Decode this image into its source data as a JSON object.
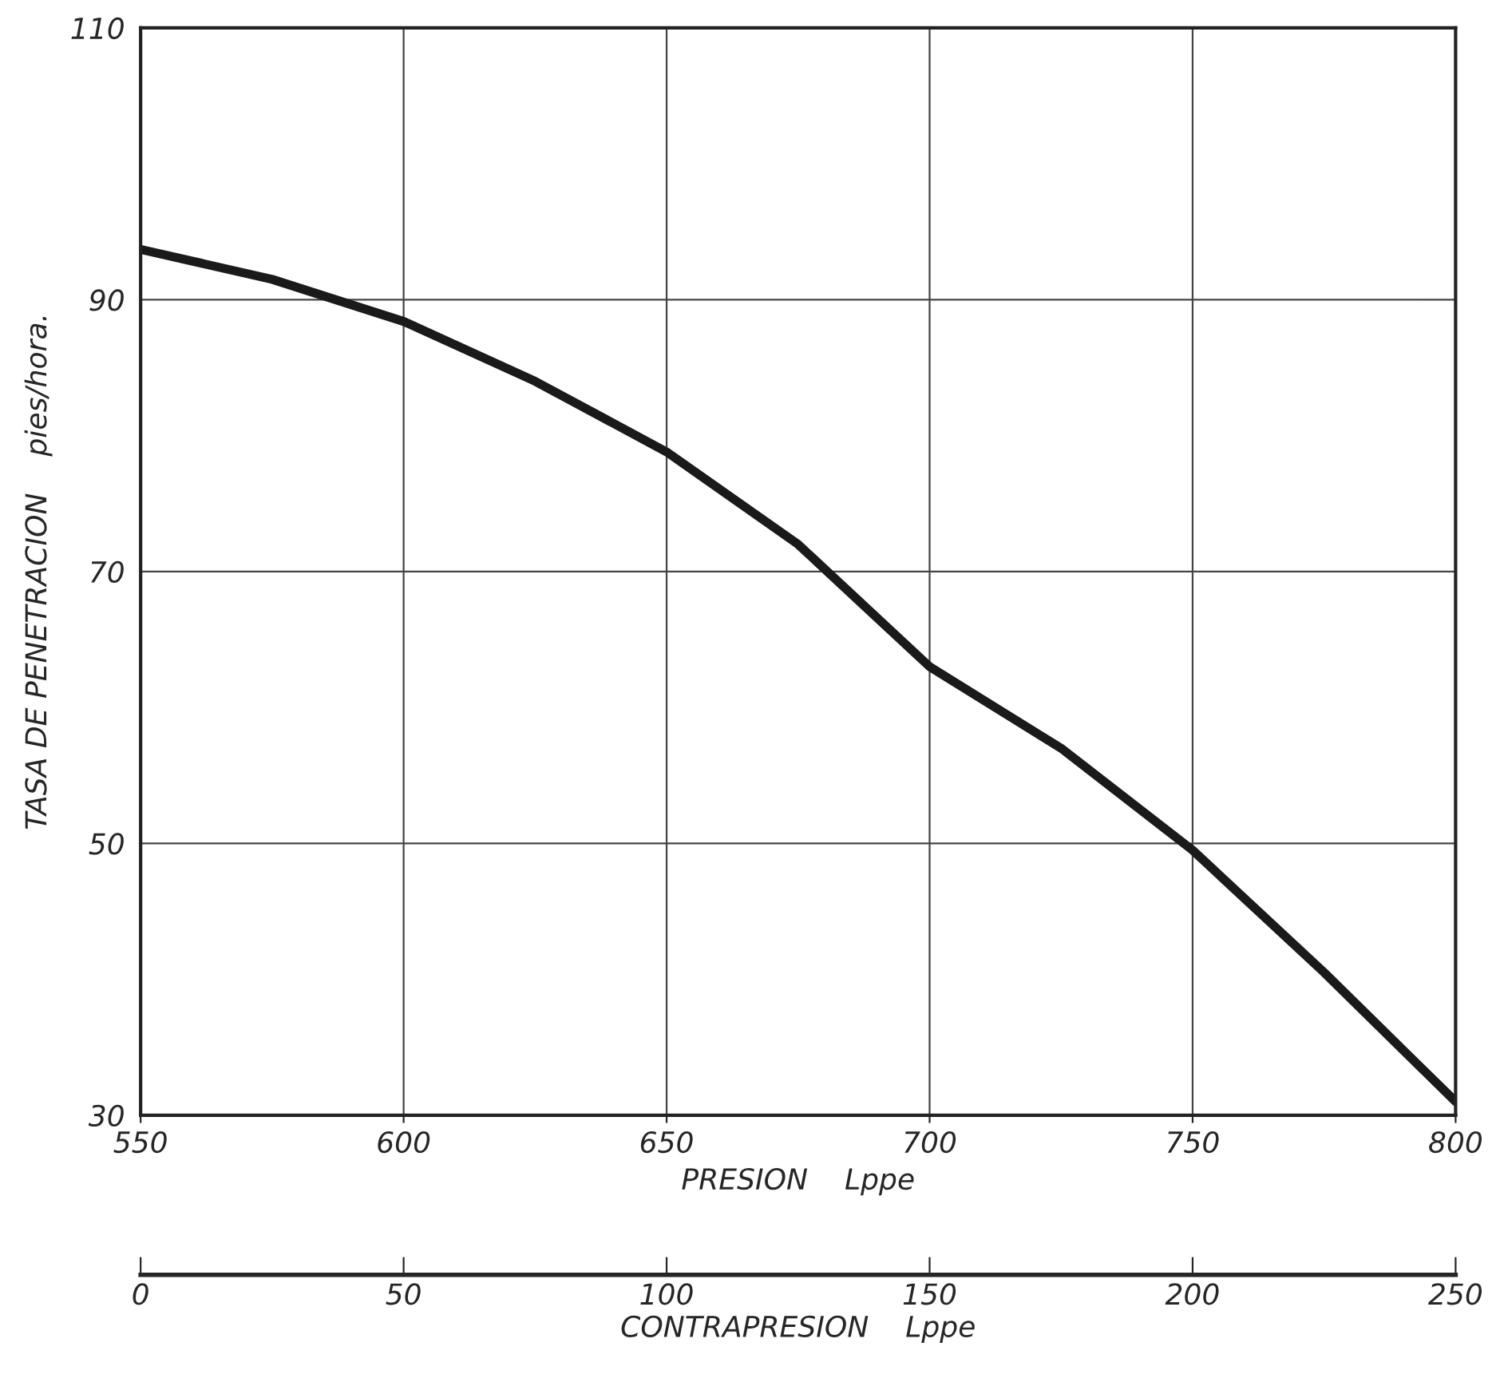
{
  "chart_data": {
    "type": "line",
    "xlabel": "PRESION    Lppe",
    "ylabel": "TASA DE PENETRACION    pies/hora.",
    "x2label": "CONTRAPRESION    Lppe",
    "x": [
      550,
      575,
      600,
      625,
      650,
      675,
      700,
      725,
      750,
      775,
      800
    ],
    "series": [
      {
        "color": "#1a1a1a",
        "values": [
          93.7,
          91.5,
          88.4,
          84,
          78.8,
          72,
          63,
          57,
          49.5,
          40.5,
          31
        ]
      }
    ],
    "xlim": [
      550,
      800
    ],
    "xticks": [
      550,
      600,
      650,
      700,
      750,
      800
    ],
    "ylim": [
      30,
      110
    ],
    "yticks": [
      30,
      50,
      70,
      90,
      110
    ],
    "x2lim": [
      0,
      250
    ],
    "x2ticks": [
      0,
      50,
      100,
      150,
      200,
      250
    ],
    "grid": true,
    "marker": "none",
    "line_style": "solid"
  }
}
